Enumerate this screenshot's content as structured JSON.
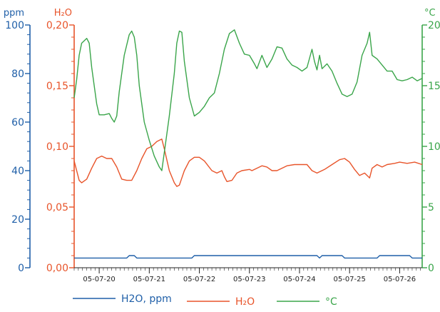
{
  "chart_data": {
    "type": "line",
    "x_tick_labels": [
      "05-07-20",
      "05-07-21",
      "05-07-22",
      "05-07-23",
      "05-07-24",
      "05-07-25",
      "05-07-26"
    ],
    "axes": {
      "ppm": {
        "title": "ppm",
        "color": "#1f5fa8",
        "ylim": [
          0,
          100
        ],
        "ticks": [
          "0",
          "20",
          "40",
          "60",
          "80",
          "100"
        ]
      },
      "h2o": {
        "title": "H₂O",
        "color": "#e8542a",
        "ylim": [
          0,
          0.2
        ],
        "ticks": [
          "0,00",
          "0,05",
          "0,10",
          "0,15",
          "0,20"
        ]
      },
      "temp": {
        "title": "°C",
        "color": "#3aa54a",
        "ylim": [
          0,
          20
        ],
        "ticks": [
          "0",
          "5",
          "10",
          "15",
          "20"
        ]
      }
    },
    "xlim": [
      0,
      6.95
    ],
    "series": [
      {
        "name": "H2O, ppm",
        "axis": "ppm",
        "color": "#1f5fa8",
        "points": [
          [
            0,
            4
          ],
          [
            1.05,
            4
          ],
          [
            1.1,
            5
          ],
          [
            1.2,
            5
          ],
          [
            1.25,
            4
          ],
          [
            2.35,
            4
          ],
          [
            2.4,
            5
          ],
          [
            4.85,
            5
          ],
          [
            4.9,
            4
          ],
          [
            4.95,
            5
          ],
          [
            5.35,
            5
          ],
          [
            5.4,
            4
          ],
          [
            6.05,
            4
          ],
          [
            6.1,
            5
          ],
          [
            6.7,
            5
          ],
          [
            6.75,
            4
          ],
          [
            6.95,
            4
          ]
        ]
      },
      {
        "name": "H₂O",
        "axis": "h2o",
        "color": "#e8542a",
        "points": [
          [
            0,
            0.088
          ],
          [
            0.1,
            0.072
          ],
          [
            0.15,
            0.07
          ],
          [
            0.25,
            0.073
          ],
          [
            0.35,
            0.082
          ],
          [
            0.45,
            0.09
          ],
          [
            0.55,
            0.092
          ],
          [
            0.65,
            0.09
          ],
          [
            0.75,
            0.09
          ],
          [
            0.85,
            0.083
          ],
          [
            0.95,
            0.073
          ],
          [
            1.05,
            0.072
          ],
          [
            1.15,
            0.072
          ],
          [
            1.25,
            0.08
          ],
          [
            1.35,
            0.09
          ],
          [
            1.45,
            0.098
          ],
          [
            1.55,
            0.1
          ],
          [
            1.65,
            0.104
          ],
          [
            1.75,
            0.106
          ],
          [
            1.8,
            0.098
          ],
          [
            1.9,
            0.08
          ],
          [
            2.0,
            0.07
          ],
          [
            2.05,
            0.067
          ],
          [
            2.1,
            0.068
          ],
          [
            2.15,
            0.074
          ],
          [
            2.2,
            0.08
          ],
          [
            2.3,
            0.088
          ],
          [
            2.4,
            0.091
          ],
          [
            2.5,
            0.091
          ],
          [
            2.6,
            0.088
          ],
          [
            2.75,
            0.08
          ],
          [
            2.85,
            0.078
          ],
          [
            2.95,
            0.08
          ],
          [
            3.0,
            0.075
          ],
          [
            3.05,
            0.071
          ],
          [
            3.15,
            0.072
          ],
          [
            3.25,
            0.078
          ],
          [
            3.35,
            0.08
          ],
          [
            3.5,
            0.081
          ],
          [
            3.55,
            0.08
          ],
          [
            3.65,
            0.082
          ],
          [
            3.75,
            0.084
          ],
          [
            3.85,
            0.083
          ],
          [
            3.95,
            0.08
          ],
          [
            4.05,
            0.08
          ],
          [
            4.15,
            0.082
          ],
          [
            4.25,
            0.084
          ],
          [
            4.4,
            0.085
          ],
          [
            4.55,
            0.085
          ],
          [
            4.65,
            0.085
          ],
          [
            4.75,
            0.08
          ],
          [
            4.85,
            0.078
          ],
          [
            5.0,
            0.081
          ],
          [
            5.15,
            0.085
          ],
          [
            5.3,
            0.089
          ],
          [
            5.4,
            0.09
          ],
          [
            5.5,
            0.087
          ],
          [
            5.6,
            0.081
          ],
          [
            5.7,
            0.076
          ],
          [
            5.8,
            0.078
          ],
          [
            5.9,
            0.074
          ],
          [
            5.95,
            0.082
          ],
          [
            6.05,
            0.085
          ],
          [
            6.15,
            0.083
          ],
          [
            6.25,
            0.085
          ],
          [
            6.4,
            0.086
          ],
          [
            6.5,
            0.087
          ],
          [
            6.65,
            0.086
          ],
          [
            6.8,
            0.087
          ],
          [
            6.95,
            0.085
          ]
        ]
      },
      {
        "name": "°C",
        "axis": "temp",
        "color": "#3aa54a",
        "points": [
          [
            0,
            14
          ],
          [
            0.05,
            15.5
          ],
          [
            0.1,
            17.5
          ],
          [
            0.15,
            18.5
          ],
          [
            0.25,
            18.9
          ],
          [
            0.3,
            18.5
          ],
          [
            0.35,
            16.5
          ],
          [
            0.45,
            13.5
          ],
          [
            0.5,
            12.6
          ],
          [
            0.6,
            12.6
          ],
          [
            0.7,
            12.7
          ],
          [
            0.75,
            12.3
          ],
          [
            0.8,
            12
          ],
          [
            0.85,
            12.5
          ],
          [
            0.9,
            14.5
          ],
          [
            1.0,
            17.5
          ],
          [
            1.1,
            19.2
          ],
          [
            1.15,
            19.5
          ],
          [
            1.2,
            19
          ],
          [
            1.25,
            17.5
          ],
          [
            1.3,
            15
          ],
          [
            1.4,
            12
          ],
          [
            1.5,
            10.5
          ],
          [
            1.6,
            9.2
          ],
          [
            1.7,
            8.3
          ],
          [
            1.75,
            8
          ],
          [
            1.8,
            9.5
          ],
          [
            1.9,
            12.5
          ],
          [
            2.0,
            16
          ],
          [
            2.05,
            18.5
          ],
          [
            2.1,
            19.5
          ],
          [
            2.15,
            19.4
          ],
          [
            2.2,
            17
          ],
          [
            2.3,
            14
          ],
          [
            2.4,
            12.5
          ],
          [
            2.5,
            12.8
          ],
          [
            2.6,
            13.3
          ],
          [
            2.7,
            14
          ],
          [
            2.8,
            14.4
          ],
          [
            2.9,
            16
          ],
          [
            3.0,
            18
          ],
          [
            3.1,
            19.3
          ],
          [
            3.2,
            19.6
          ],
          [
            3.3,
            18.5
          ],
          [
            3.4,
            17.6
          ],
          [
            3.5,
            17.5
          ],
          [
            3.6,
            16.8
          ],
          [
            3.65,
            16.4
          ],
          [
            3.75,
            17.5
          ],
          [
            3.85,
            16.5
          ],
          [
            3.95,
            17.2
          ],
          [
            4.05,
            18.2
          ],
          [
            4.15,
            18.1
          ],
          [
            4.25,
            17.2
          ],
          [
            4.35,
            16.7
          ],
          [
            4.45,
            16.5
          ],
          [
            4.55,
            16.2
          ],
          [
            4.65,
            16.5
          ],
          [
            4.75,
            18
          ],
          [
            4.8,
            17
          ],
          [
            4.85,
            16.3
          ],
          [
            4.9,
            17.5
          ],
          [
            4.95,
            16.4
          ],
          [
            5.05,
            16.8
          ],
          [
            5.15,
            16.2
          ],
          [
            5.25,
            15.2
          ],
          [
            5.35,
            14.3
          ],
          [
            5.45,
            14.1
          ],
          [
            5.55,
            14.3
          ],
          [
            5.65,
            15.3
          ],
          [
            5.75,
            17.5
          ],
          [
            5.85,
            18.5
          ],
          [
            5.9,
            19.4
          ],
          [
            5.95,
            17.5
          ],
          [
            6.05,
            17.2
          ],
          [
            6.15,
            16.7
          ],
          [
            6.25,
            16.2
          ],
          [
            6.35,
            16.2
          ],
          [
            6.45,
            15.5
          ],
          [
            6.55,
            15.4
          ],
          [
            6.65,
            15.5
          ],
          [
            6.75,
            15.7
          ],
          [
            6.85,
            15.4
          ],
          [
            6.95,
            15.6
          ]
        ]
      }
    ],
    "legend": [
      {
        "label": "H2O, ppm",
        "color": "#1f5fa8"
      },
      {
        "label": "H₂O",
        "color": "#e8542a"
      },
      {
        "label": "°C",
        "color": "#3aa54a"
      }
    ],
    "grid": false,
    "legend_position": "bottom"
  }
}
